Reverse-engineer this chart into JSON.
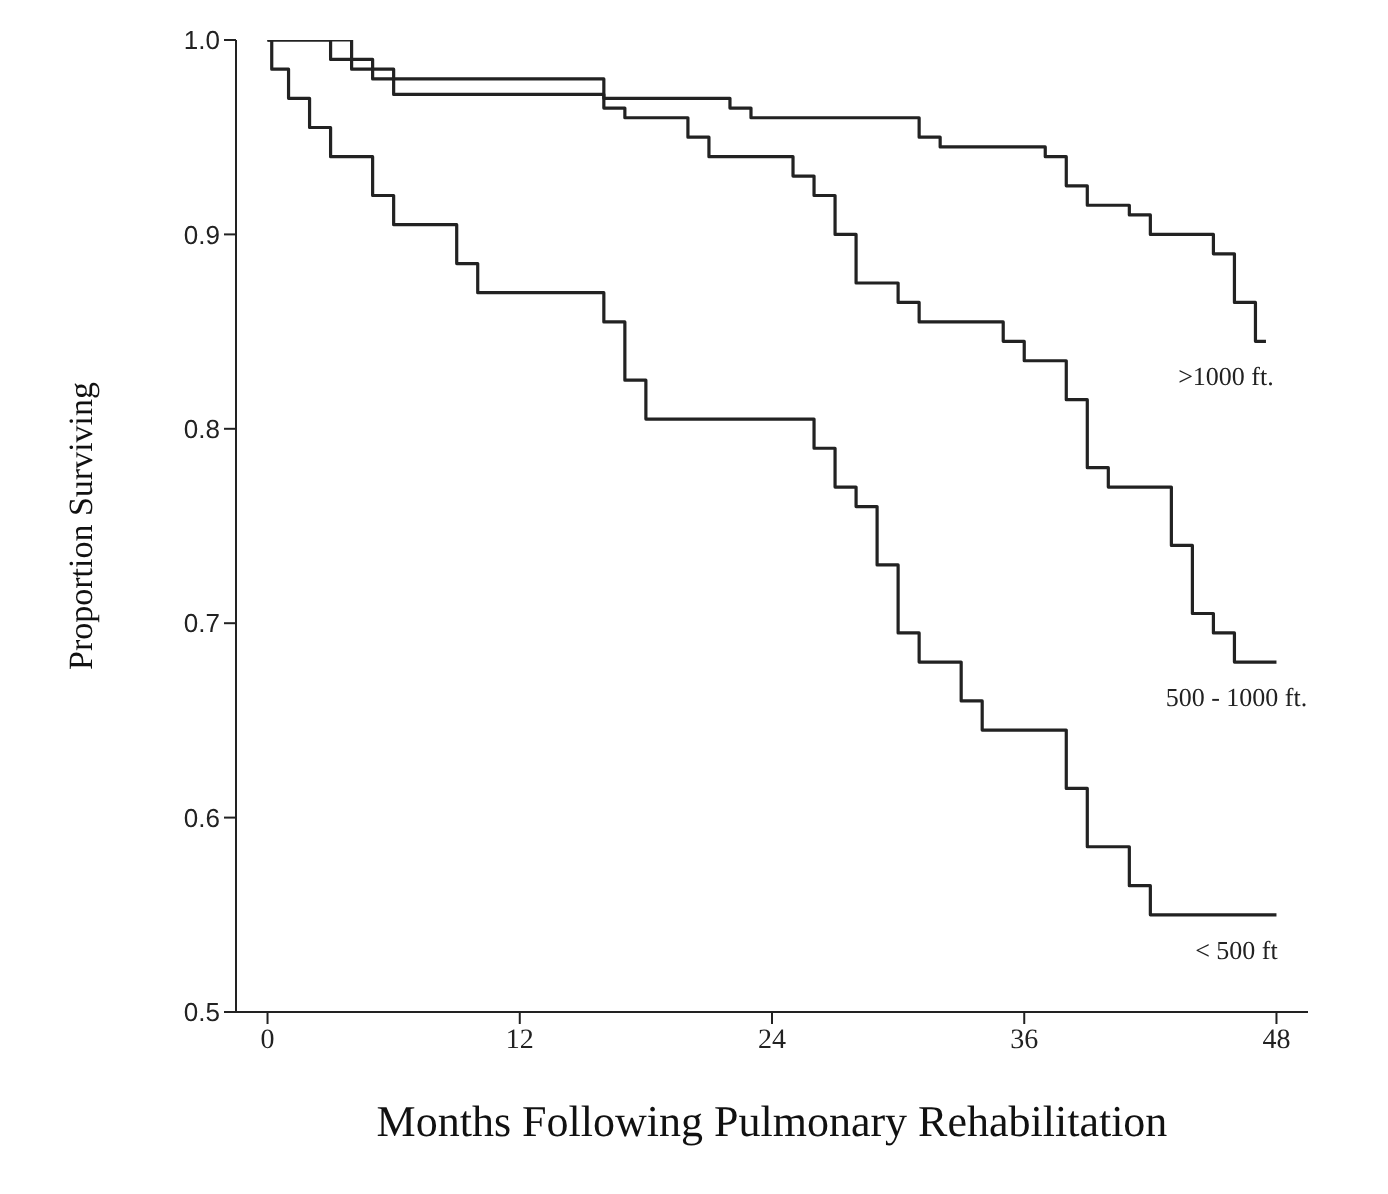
{
  "chart_data": {
    "type": "step",
    "xlabel": "Months Following Pulmonary Rehabilitation",
    "ylabel": "Proportion Surviving",
    "xlim": [
      -1.5,
      49.5
    ],
    "xticks": [
      0,
      12,
      24,
      36,
      48
    ],
    "ylim": [
      0.5,
      1.0
    ],
    "yticks": [
      0.5,
      0.6,
      0.7,
      0.8,
      0.9,
      {
        "value": 1.0,
        "label": "1.0"
      }
    ],
    "grid": false,
    "legend": false,
    "marker": "none",
    "line_style": "solid",
    "series": [
      {
        "name": ">1000 ft.",
        "color": "#222222",
        "x": [
          0,
          4,
          5,
          6,
          16,
          22,
          23,
          31,
          32,
          37,
          38,
          39,
          41,
          42,
          45,
          46,
          47,
          47.5
        ],
        "values": [
          1.0,
          0.99,
          0.985,
          0.98,
          0.97,
          0.965,
          0.96,
          0.95,
          0.945,
          0.94,
          0.925,
          0.915,
          0.91,
          0.9,
          0.89,
          0.865,
          0.845,
          0.845
        ]
      },
      {
        "name": "500 - 1000 ft.",
        "color": "#222222",
        "x": [
          0,
          3,
          4,
          5,
          6,
          16,
          17,
          20,
          21,
          25,
          26,
          27,
          28,
          30,
          31,
          35,
          36,
          38,
          39,
          40,
          43,
          44,
          45,
          46,
          48
        ],
        "values": [
          1.0,
          0.99,
          0.985,
          0.98,
          0.972,
          0.965,
          0.96,
          0.95,
          0.94,
          0.93,
          0.92,
          0.9,
          0.875,
          0.865,
          0.855,
          0.845,
          0.835,
          0.815,
          0.78,
          0.77,
          0.74,
          0.705,
          0.695,
          0.68,
          0.68
        ]
      },
      {
        "name": "< 500 ft",
        "color": "#222222",
        "x": [
          0,
          0.2,
          1,
          2,
          3,
          5,
          6,
          9,
          10,
          16,
          17,
          18,
          26,
          27,
          28,
          29,
          30,
          31,
          33,
          34,
          38,
          39,
          41,
          42,
          48
        ],
        "values": [
          1.0,
          0.985,
          0.97,
          0.955,
          0.94,
          0.92,
          0.905,
          0.885,
          0.87,
          0.855,
          0.825,
          0.805,
          0.79,
          0.77,
          0.76,
          0.73,
          0.695,
          0.68,
          0.66,
          0.645,
          0.615,
          0.585,
          0.565,
          0.55,
          0.55
        ]
      }
    ]
  }
}
